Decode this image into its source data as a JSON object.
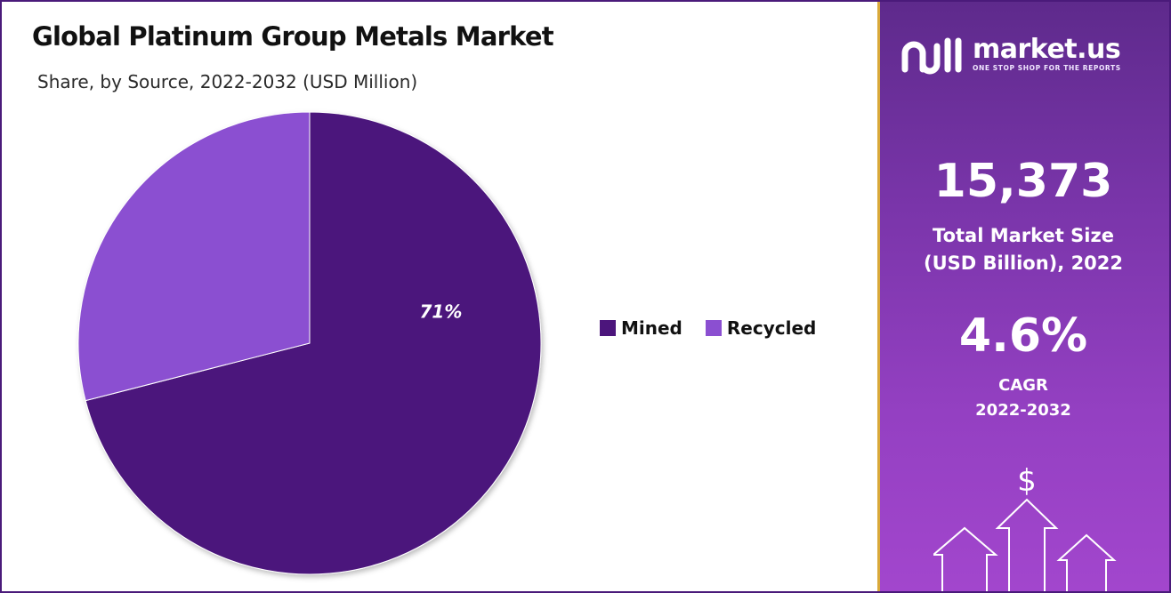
{
  "chart_data": {
    "type": "pie",
    "title": "Global Platinum Group Metals Market",
    "subtitle": "Share, by Source, 2022-2032 (USD Million)",
    "series": [
      {
        "name": "Mined",
        "value": 71,
        "label": "71%"
      },
      {
        "name": "Recycled",
        "value": 29,
        "label": ""
      }
    ],
    "legend_placement": "right",
    "colors": {
      "Mined": "#4c157c",
      "Recycled": "#8b4fd1"
    }
  },
  "brand": {
    "name": "market.us",
    "tagline": "ONE STOP SHOP FOR THE REPORTS"
  },
  "stats": {
    "market_size_value": "15,373",
    "market_size_label_line1": "Total Market Size",
    "market_size_label_line2": "(USD Billion), 2022",
    "cagr_value": "4.6%",
    "cagr_label_line1": "CAGR",
    "cagr_label_line2": "2022-2032"
  },
  "icons": {
    "dollar_symbol": "$",
    "logo": "market-us-logo-icon",
    "growth": "growth-arrows-icon"
  }
}
